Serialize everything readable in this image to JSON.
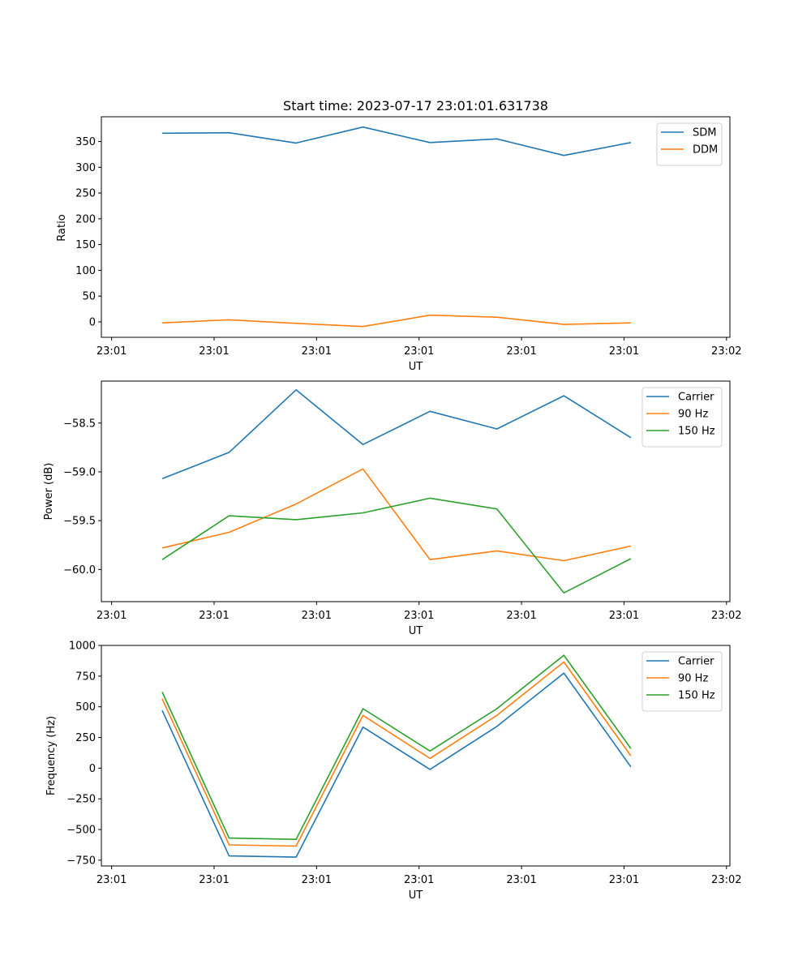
{
  "chart_data": [
    {
      "type": "line",
      "title": "Start time: 2023-07-17 23:01:01.631738",
      "xlabel": "UT",
      "ylabel": "Ratio",
      "xlim": [
        -0.15,
        9.05
      ],
      "ylim": [
        -30,
        398
      ],
      "x_ticks": [
        0,
        1.5,
        3,
        4.5,
        6,
        7.5,
        9
      ],
      "x_tick_labels": [
        "23:01",
        "23:01",
        "23:01",
        "23:01",
        "23:01",
        "23:01",
        "23:02"
      ],
      "y_ticks": [
        0,
        50,
        100,
        150,
        200,
        250,
        300,
        350
      ],
      "y_tick_labels": [
        "0",
        "50",
        "100",
        "150",
        "200",
        "250",
        "300",
        "350"
      ],
      "legend_position": "top-right",
      "x": [
        0.74,
        1.72,
        2.7,
        3.68,
        4.66,
        5.64,
        6.62,
        7.6
      ],
      "series": [
        {
          "name": "SDM",
          "color": "#1f77b4",
          "values": [
            366,
            367,
            347,
            378,
            348,
            355,
            323,
            348
          ]
        },
        {
          "name": "DDM",
          "color": "#ff7f0e",
          "values": [
            -2,
            4,
            -3,
            -9,
            13,
            9,
            -5,
            -2
          ]
        }
      ]
    },
    {
      "type": "line",
      "title": "",
      "xlabel": "UT",
      "ylabel": "Power (dB)",
      "xlim": [
        -0.15,
        9.05
      ],
      "ylim": [
        -60.33,
        -58.07
      ],
      "x_ticks": [
        0,
        1.5,
        3,
        4.5,
        6,
        7.5,
        9
      ],
      "x_tick_labels": [
        "23:01",
        "23:01",
        "23:01",
        "23:01",
        "23:01",
        "23:01",
        "23:02"
      ],
      "y_ticks": [
        -60.0,
        -59.5,
        -59.0,
        -58.5
      ],
      "y_tick_labels": [
        "−60.0",
        "−59.5",
        "−59.0",
        "−58.5"
      ],
      "legend_position": "top-right",
      "x": [
        0.74,
        1.72,
        2.7,
        3.68,
        4.66,
        5.64,
        6.62,
        7.6
      ],
      "series": [
        {
          "name": "Carrier",
          "color": "#1f77b4",
          "values": [
            -59.07,
            -58.8,
            -58.16,
            -58.72,
            -58.38,
            -58.56,
            -58.22,
            -58.65
          ]
        },
        {
          "name": "90 Hz",
          "color": "#ff7f0e",
          "values": [
            -59.78,
            -59.62,
            -59.33,
            -58.97,
            -59.9,
            -59.81,
            -59.91,
            -59.76
          ]
        },
        {
          "name": "150 Hz",
          "color": "#2ca02c",
          "values": [
            -59.9,
            -59.45,
            -59.49,
            -59.42,
            -59.27,
            -59.38,
            -60.24,
            -59.89
          ]
        }
      ]
    },
    {
      "type": "line",
      "title": "",
      "xlabel": "UT",
      "ylabel": "Frequency (Hz)",
      "xlim": [
        -0.15,
        9.05
      ],
      "ylim": [
        -797,
        1000
      ],
      "x_ticks": [
        0,
        1.5,
        3,
        4.5,
        6,
        7.5,
        9
      ],
      "x_tick_labels": [
        "23:01",
        "23:01",
        "23:01",
        "23:01",
        "23:01",
        "23:01",
        "23:02"
      ],
      "y_ticks": [
        -750,
        -500,
        -250,
        0,
        250,
        500,
        750,
        1000
      ],
      "y_tick_labels": [
        "−750",
        "−500",
        "−250",
        "0",
        "250",
        "500",
        "750",
        "1000"
      ],
      "legend_position": "top-right",
      "x": [
        0.74,
        1.72,
        2.7,
        3.68,
        4.66,
        5.64,
        6.62,
        7.6
      ],
      "series": [
        {
          "name": "Carrier",
          "color": "#1f77b4",
          "values": [
            470,
            -715,
            -725,
            335,
            -10,
            340,
            775,
            10
          ]
        },
        {
          "name": "90 Hz",
          "color": "#ff7f0e",
          "values": [
            565,
            -625,
            -635,
            430,
            80,
            430,
            865,
            100
          ]
        },
        {
          "name": "150 Hz",
          "color": "#2ca02c",
          "values": [
            620,
            -570,
            -580,
            485,
            140,
            485,
            920,
            160
          ]
        }
      ]
    }
  ]
}
